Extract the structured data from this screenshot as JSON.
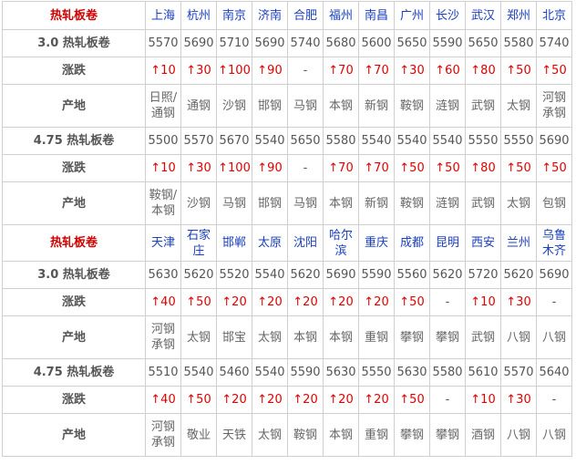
{
  "sections": [
    {
      "header": {
        "label": "热轧板卷",
        "cities": [
          "上海",
          "杭州",
          "南京",
          "济南",
          "合肥",
          "福州",
          "南昌",
          "广州",
          "长沙",
          "武汉",
          "郑州",
          "北京"
        ]
      },
      "rows": [
        {
          "label": "3.0 热轧板卷",
          "kind": "price",
          "cells": [
            5570,
            5690,
            5710,
            5690,
            5740,
            5680,
            5600,
            5650,
            5590,
            5650,
            5580,
            5740
          ]
        },
        {
          "label": "涨跌",
          "kind": "change",
          "cells": [
            "↑10",
            "↑30",
            "↑100",
            "↑90",
            "-",
            "↑70",
            "↑70",
            "↑30",
            "↑60",
            "↑80",
            "↑50",
            "↑50"
          ]
        },
        {
          "label": "产地",
          "kind": "origin",
          "cells": [
            "日照/通钢",
            "通钢",
            "沙钢",
            "邯钢",
            "马钢",
            "本钢",
            "新钢",
            "鞍钢",
            "涟钢",
            "武钢",
            "太钢",
            "河钢承钢"
          ]
        },
        {
          "label": "4.75 热轧板卷",
          "kind": "price",
          "cells": [
            5500,
            5570,
            5670,
            5540,
            5650,
            5580,
            5540,
            5540,
            5540,
            5550,
            5550,
            5690
          ]
        },
        {
          "label": "涨跌",
          "kind": "change",
          "cells": [
            "↑10",
            "↑30",
            "↑100",
            "↑90",
            "-",
            "↑70",
            "↑70",
            "↑50",
            "↑50",
            "↑80",
            "↑50",
            "↑50"
          ]
        },
        {
          "label": "产地",
          "kind": "origin",
          "cells": [
            "鞍钢/本钢",
            "沙钢",
            "马钢",
            "邯钢",
            "马钢",
            "本钢",
            "新钢",
            "鞍钢",
            "涟钢",
            "武钢",
            "太钢",
            "包钢"
          ]
        }
      ]
    },
    {
      "header": {
        "label": "热轧板卷",
        "cities": [
          "天津",
          "石家庄",
          "邯郸",
          "太原",
          "沈阳",
          "哈尔滨",
          "重庆",
          "成都",
          "昆明",
          "西安",
          "兰州",
          "乌鲁木齐"
        ]
      },
      "rows": [
        {
          "label": "3.0 热轧板卷",
          "kind": "price",
          "cells": [
            5630,
            5620,
            5520,
            5540,
            5620,
            5690,
            5590,
            5560,
            5620,
            5720,
            5620,
            5690
          ]
        },
        {
          "label": "涨跌",
          "kind": "change",
          "cells": [
            "↑40",
            "↑50",
            "↑20",
            "↑20",
            "↑20",
            "↑20",
            "↑20",
            "↑50",
            "-",
            "↑10",
            "↑30",
            "-"
          ]
        },
        {
          "label": "产地",
          "kind": "origin",
          "cells": [
            "河钢承钢",
            "太钢",
            "邯宝",
            "太钢",
            "本钢",
            "本钢",
            "重钢",
            "攀钢",
            "攀钢",
            "武钢",
            "八钢",
            "八钢"
          ]
        },
        {
          "label": "4.75 热轧板卷",
          "kind": "price",
          "cells": [
            5510,
            5540,
            5460,
            5540,
            5590,
            5630,
            5550,
            5630,
            5580,
            5610,
            5570,
            5640
          ]
        },
        {
          "label": "涨跌",
          "kind": "change",
          "cells": [
            "↑40",
            "↑50",
            "↑20",
            "↑20",
            "↑20",
            "↑20",
            "↑20",
            "↑50",
            "-",
            "↑10",
            "↑30",
            "-"
          ]
        },
        {
          "label": "产地",
          "kind": "origin",
          "cells": [
            "河钢承钢",
            "敬业",
            "天铁",
            "太钢",
            "鞍钢",
            "本钢",
            "重钢",
            "攀钢",
            "攀钢",
            "酒钢",
            "八钢",
            "八钢"
          ]
        }
      ]
    }
  ]
}
